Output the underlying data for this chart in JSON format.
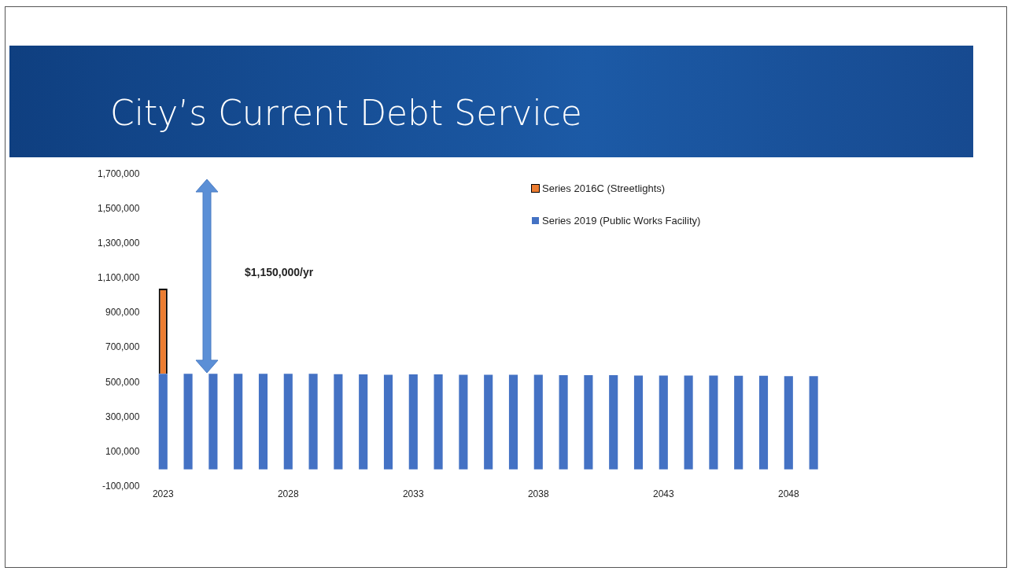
{
  "chart_data": {
    "type": "bar",
    "title": "City’s Current Debt Service",
    "categories": [
      "2023",
      null,
      null,
      null,
      null,
      "2028",
      null,
      null,
      null,
      null,
      "2033",
      null,
      null,
      null,
      null,
      "2038",
      null,
      null,
      null,
      null,
      "2043",
      null,
      null,
      null,
      null,
      "2048",
      null
    ],
    "series": [
      {
        "name": "Series 2019 (Public Works Facility)",
        "color": "#4472c4",
        "values": [
          550000,
          550000,
          550000,
          550000,
          550000,
          550000,
          550000,
          548000,
          546000,
          544000,
          546000,
          546000,
          544000,
          544000,
          544000,
          544000,
          542000,
          542000,
          542000,
          540000,
          540000,
          540000,
          540000,
          538000,
          538000,
          536000,
          536000
        ]
      },
      {
        "name": "Series 2016C (Streetlights)",
        "color": "#ed7d31",
        "values": [
          490000,
          null,
          null,
          null,
          null,
          null,
          null,
          null,
          null,
          null,
          null,
          null,
          null,
          null,
          null,
          null,
          null,
          null,
          null,
          null,
          null,
          null,
          null,
          null,
          null,
          null,
          null
        ]
      }
    ],
    "stacked": true,
    "ylim": [
      -100000,
      1700000
    ],
    "yticks": [
      {
        "value": -100000,
        "label": "-100,000"
      },
      {
        "value": 100000,
        "label": "100,000"
      },
      {
        "value": 300000,
        "label": "300,000"
      },
      {
        "value": 500000,
        "label": "500,000"
      },
      {
        "value": 700000,
        "label": "700,000"
      },
      {
        "value": 900000,
        "label": "900,000"
      },
      {
        "value": 1100000,
        "label": "1,100,000"
      },
      {
        "value": 1300000,
        "label": "1,300,000"
      },
      {
        "value": 1500000,
        "label": "1,500,000"
      },
      {
        "value": 1700000,
        "label": "1,700,000"
      }
    ],
    "grid": false,
    "legend": "top right",
    "annotations": [
      "$1,150,000/yr"
    ]
  }
}
